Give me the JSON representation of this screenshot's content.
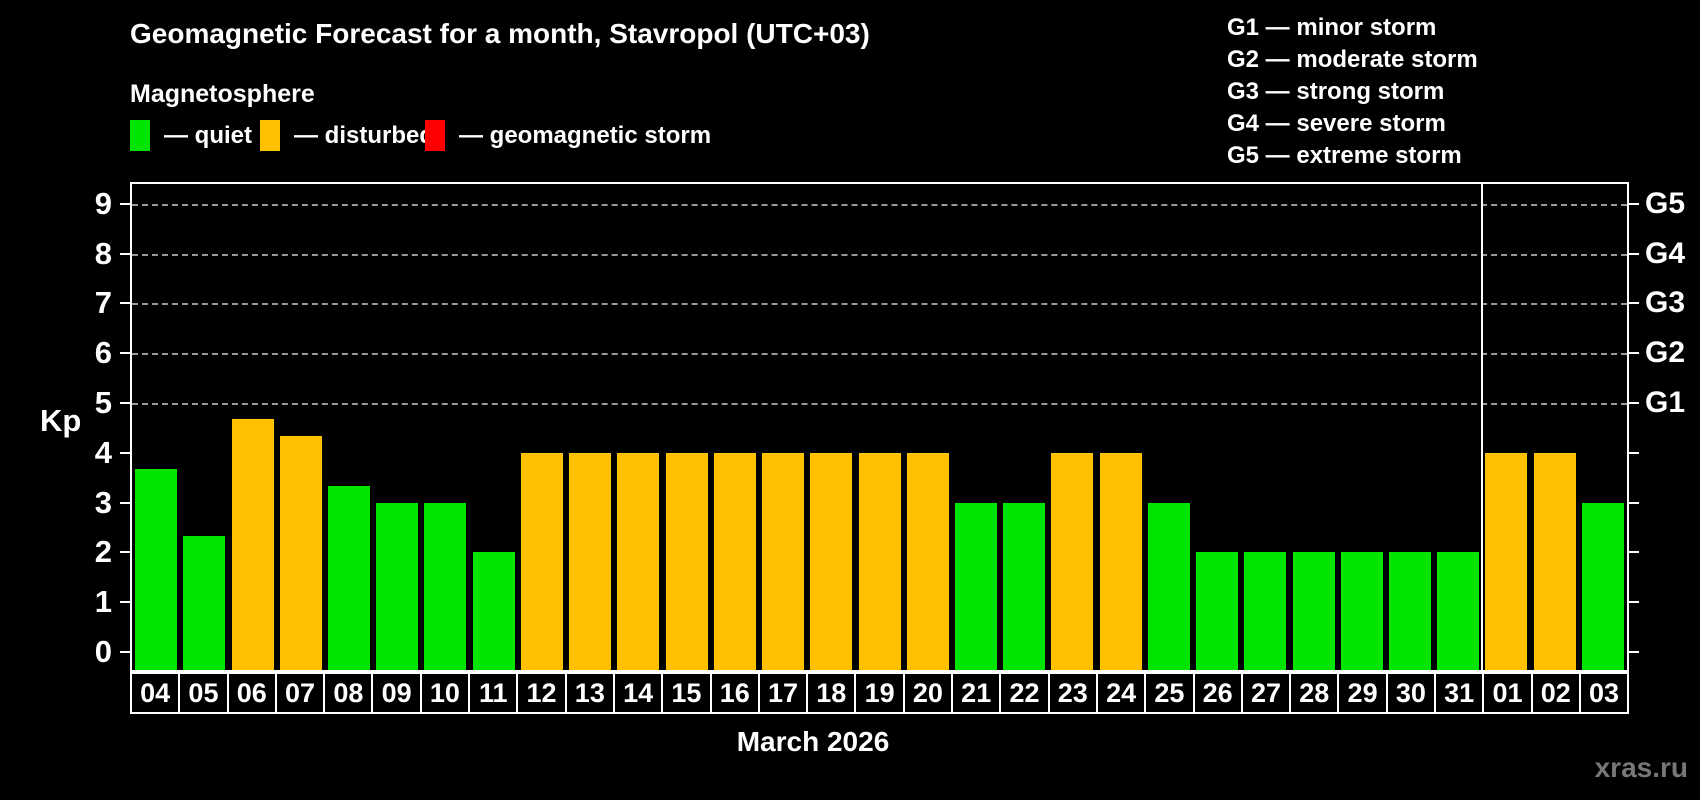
{
  "title": "Geomagnetic Forecast for a month, Stavropol (UTC+03)",
  "subtitle": "Magnetosphere",
  "legend": {
    "items": [
      {
        "name": "quiet",
        "label": "— quiet",
        "color": "#00e400",
        "x": 0
      },
      {
        "name": "disturbed",
        "label": "— disturbed",
        "color": "#ffc000",
        "x": 130
      },
      {
        "name": "storm",
        "label": "— geomagnetic storm",
        "color": "#ff0000",
        "x": 295
      }
    ]
  },
  "g_legend": [
    "G1 — minor storm",
    "G2 — moderate storm",
    "G3 — strong storm",
    "G4 — severe storm",
    "G5 — extreme storm"
  ],
  "axis": {
    "y_label": "Kp",
    "y_ticks": [
      0,
      1,
      2,
      3,
      4,
      5,
      6,
      7,
      8,
      9
    ],
    "right_scale": [
      {
        "kp": 5,
        "label": "G1"
      },
      {
        "kp": 6,
        "label": "G2"
      },
      {
        "kp": 7,
        "label": "G3"
      },
      {
        "kp": 8,
        "label": "G4"
      },
      {
        "kp": 9,
        "label": "G5"
      }
    ],
    "x_label": "March 2026"
  },
  "watermark": "xras.ru",
  "state_colors": {
    "quiet": "#00e400",
    "disturbed": "#ffc000",
    "storm": "#ff0000"
  },
  "chart_data": {
    "type": "bar",
    "title": "Geomagnetic Forecast for a month, Stavropol (UTC+03)",
    "xlabel": "March 2026",
    "ylabel": "Kp",
    "ylim": [
      -0.4,
      9.6
    ],
    "gridlines": [
      5,
      6,
      7,
      8,
      9
    ],
    "legend_position": "top",
    "grid": "dashed horizontal at storm levels only",
    "categories": [
      "04",
      "05",
      "06",
      "07",
      "08",
      "09",
      "10",
      "11",
      "12",
      "13",
      "14",
      "15",
      "16",
      "17",
      "18",
      "19",
      "20",
      "21",
      "22",
      "23",
      "24",
      "25",
      "26",
      "27",
      "28",
      "29",
      "30",
      "31",
      "01",
      "02",
      "03"
    ],
    "values": [
      3.67,
      2.33,
      4.67,
      4.33,
      3.33,
      3,
      3,
      2,
      4,
      4,
      4,
      4,
      4,
      4,
      4,
      4,
      4,
      3,
      3,
      4,
      4,
      3,
      2,
      2,
      2,
      2,
      2,
      2,
      4,
      4,
      3
    ],
    "states": [
      "quiet",
      "quiet",
      "disturbed",
      "disturbed",
      "quiet",
      "quiet",
      "quiet",
      "quiet",
      "disturbed",
      "disturbed",
      "disturbed",
      "disturbed",
      "disturbed",
      "disturbed",
      "disturbed",
      "disturbed",
      "disturbed",
      "quiet",
      "quiet",
      "disturbed",
      "disturbed",
      "quiet",
      "quiet",
      "quiet",
      "quiet",
      "quiet",
      "quiet",
      "quiet",
      "disturbed",
      "disturbed",
      "quiet"
    ],
    "month_boundary_after_index": 27
  }
}
